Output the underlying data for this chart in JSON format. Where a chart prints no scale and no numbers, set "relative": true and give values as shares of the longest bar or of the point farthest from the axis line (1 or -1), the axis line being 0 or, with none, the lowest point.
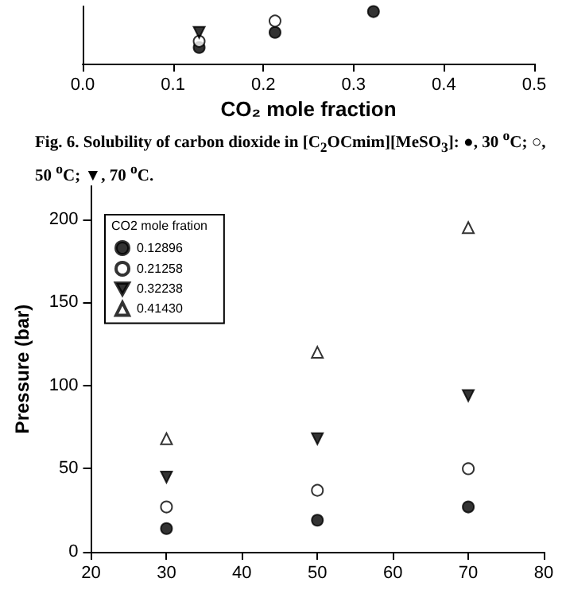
{
  "chart_data": [
    {
      "type": "scatter",
      "relative": true,
      "xlabel": "CO₂ mole fraction",
      "xlim": [
        0.0,
        0.5
      ],
      "xticks": [
        {
          "value": 0,
          "label": "0.0"
        },
        0.1,
        0.2,
        0.3,
        0.4,
        0.5
      ],
      "grid": false,
      "legend": false,
      "annotations": [
        "Fig. 6. Solubility of carbon dioxide in [C$_{2}$OCmim][MeSO$_{3}$]: ●, 30 $^{o}$C; ○, 50 $^{o}$C; ▼, 70 $^{o}$C."
      ],
      "series": [
        {
          "color": "#000000",
          "marker": "circle",
          "x": [
            0.129,
            0.213,
            0.322
          ],
          "values": [
            0.31,
            0.6,
            1.0
          ]
        },
        {
          "color": "#ffffff",
          "marker": "circle",
          "x": [
            0.129,
            0.213
          ],
          "values": [
            0.43,
            0.82
          ]
        },
        {
          "color": "#000000",
          "marker": "triangle-down",
          "x": [
            0.129
          ],
          "values": [
            0.6
          ]
        }
      ]
    },
    {
      "type": "scatter",
      "ylabel": "Pressure (bar)",
      "legend_title": "CO2 mole fration",
      "legend": "top left",
      "grid": false,
      "x": [
        30,
        50,
        70
      ],
      "xlim": [
        20,
        80
      ],
      "xticks": [
        20,
        30,
        40,
        50,
        60,
        70,
        80
      ],
      "ylim": [
        0,
        220
      ],
      "yticks": [
        0,
        50,
        100,
        150,
        200
      ],
      "series": [
        {
          "name": "0.12896",
          "color": "#000000",
          "marker": "circle",
          "values": [
            14,
            19,
            27
          ]
        },
        {
          "name": "0.21258",
          "color": "#ffffff",
          "marker": "circle",
          "values": [
            27,
            37,
            50
          ]
        },
        {
          "name": "0.32238",
          "color": "#000000",
          "marker": "triangle-down",
          "values": [
            45,
            68,
            94
          ]
        },
        {
          "name": "0.41430",
          "color": "#ffffff",
          "marker": "triangle",
          "values": [
            68,
            120,
            195
          ]
        }
      ]
    }
  ]
}
